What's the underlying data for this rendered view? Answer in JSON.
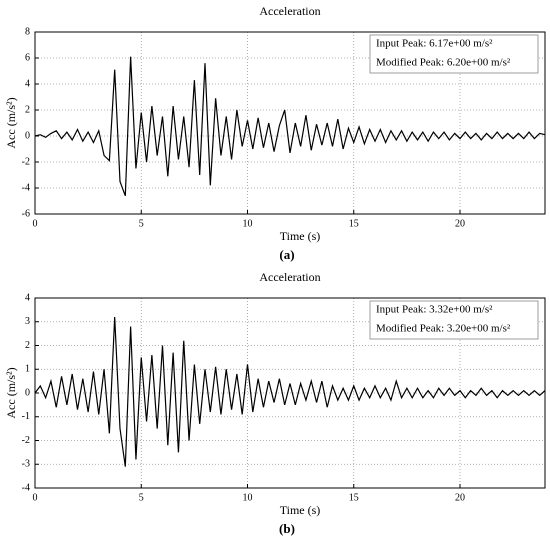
{
  "chart_data": [
    {
      "type": "line",
      "title": "Acceleration",
      "xlabel": "Time (s)",
      "ylabel": "Acc (m/s²)",
      "caption": "(a)",
      "annotations": [
        "Input Peak: 6.17e+00 m/s²",
        "Modified Peak: 6.20e+00 m/s²"
      ],
      "x": [
        0,
        0.25,
        0.5,
        0.75,
        1,
        1.25,
        1.5,
        1.75,
        2,
        2.25,
        2.5,
        2.75,
        3,
        3.25,
        3.5,
        3.75,
        4,
        4.25,
        4.5,
        4.75,
        5,
        5.25,
        5.5,
        5.75,
        6,
        6.25,
        6.5,
        6.75,
        7,
        7.25,
        7.5,
        7.75,
        8,
        8.25,
        8.5,
        8.75,
        9,
        9.25,
        9.5,
        9.75,
        10,
        10.25,
        10.5,
        10.75,
        11,
        11.25,
        11.5,
        11.75,
        12,
        12.25,
        12.5,
        12.75,
        13,
        13.25,
        13.5,
        13.75,
        14,
        14.25,
        14.5,
        14.75,
        15,
        15.25,
        15.5,
        15.75,
        16,
        16.25,
        16.5,
        16.75,
        17,
        17.25,
        17.5,
        17.75,
        18,
        18.25,
        18.5,
        18.75,
        19,
        19.25,
        19.5,
        19.75,
        20,
        20.25,
        20.5,
        20.75,
        21,
        21.25,
        21.5,
        21.75,
        22,
        22.25,
        22.5,
        22.75,
        23,
        23.25,
        23.5,
        23.75,
        24
      ],
      "values": [
        0,
        0.1,
        -0.1,
        0.2,
        0.4,
        -0.2,
        0.3,
        -0.3,
        0.5,
        -0.4,
        0.3,
        -0.5,
        0.4,
        -1.5,
        -1.9,
        5.1,
        -3.5,
        -4.6,
        6.1,
        -2.5,
        1.8,
        -2.0,
        2.3,
        -1.5,
        1.5,
        -3.1,
        2.3,
        -1.8,
        1.5,
        -2.4,
        4.3,
        -3.0,
        5.6,
        -3.8,
        2.9,
        -1.5,
        1.5,
        -1.8,
        2.0,
        -0.8,
        1.2,
        -1.0,
        1.4,
        -0.9,
        1.0,
        -1.2,
        0.8,
        2.0,
        -1.3,
        1.0,
        -0.8,
        1.6,
        -1.1,
        0.9,
        -0.7,
        1.0,
        -0.8,
        1.3,
        -1.0,
        0.6,
        -0.5,
        0.7,
        -0.6,
        0.5,
        -0.4,
        0.5,
        -0.5,
        0.4,
        -0.3,
        0.4,
        -0.4,
        0.3,
        -0.3,
        0.3,
        -0.4,
        0.3,
        -0.2,
        0.3,
        -0.3,
        0.2,
        -0.2,
        0.3,
        -0.2,
        0.2,
        -0.3,
        0.2,
        -0.2,
        0.3,
        -0.2,
        0.2,
        -0.2,
        0.2,
        -0.2,
        0.3,
        -0.2,
        0.2,
        0.1
      ],
      "color": "#000000",
      "xlim": [
        0,
        24
      ],
      "xticks": [
        0,
        5,
        10,
        15,
        20
      ],
      "ylim": [
        -6,
        8
      ],
      "yticks": [
        -6,
        -4,
        -2,
        0,
        2,
        4,
        6,
        8
      ],
      "grid": true
    },
    {
      "type": "line",
      "title": "Acceleration",
      "xlabel": "Time (s)",
      "ylabel": "Acc (m/s²)",
      "caption": "(b)",
      "annotations": [
        "Input Peak: 3.32e+00 m/s²",
        "Modified Peak: 3.20e+00 m/s²"
      ],
      "x": [
        0,
        0.25,
        0.5,
        0.75,
        1,
        1.25,
        1.5,
        1.75,
        2,
        2.25,
        2.5,
        2.75,
        3,
        3.25,
        3.5,
        3.75,
        4,
        4.25,
        4.5,
        4.75,
        5,
        5.25,
        5.5,
        5.75,
        6,
        6.25,
        6.5,
        6.75,
        7,
        7.25,
        7.5,
        7.75,
        8,
        8.25,
        8.5,
        8.75,
        9,
        9.25,
        9.5,
        9.75,
        10,
        10.25,
        10.5,
        10.75,
        11,
        11.25,
        11.5,
        11.75,
        12,
        12.25,
        12.5,
        12.75,
        13,
        13.25,
        13.5,
        13.75,
        14,
        14.25,
        14.5,
        14.75,
        15,
        15.25,
        15.5,
        15.75,
        16,
        16.25,
        16.5,
        16.75,
        17,
        17.25,
        17.5,
        17.75,
        18,
        18.25,
        18.5,
        18.75,
        19,
        19.25,
        19.5,
        19.75,
        20,
        20.25,
        20.5,
        20.75,
        21,
        21.25,
        21.5,
        21.75,
        22,
        22.25,
        22.5,
        22.75,
        23,
        23.25,
        23.5,
        23.75,
        24
      ],
      "values": [
        0,
        0.3,
        -0.2,
        0.5,
        -0.6,
        0.7,
        -0.5,
        0.8,
        -0.7,
        0.6,
        -0.8,
        0.9,
        -0.9,
        1.0,
        -1.7,
        3.2,
        -1.5,
        -3.1,
        2.8,
        -2.8,
        1.5,
        -1.2,
        1.6,
        -1.5,
        2.0,
        -2.2,
        1.7,
        -2.5,
        2.2,
        -2.0,
        1.2,
        -1.3,
        1.0,
        -0.8,
        1.1,
        -0.9,
        1.0,
        -0.7,
        0.8,
        -0.9,
        1.2,
        -0.8,
        0.6,
        -0.6,
        0.5,
        -0.4,
        0.6,
        -0.5,
        0.4,
        -0.5,
        0.4,
        -0.3,
        0.5,
        -0.4,
        0.5,
        -0.6,
        0.3,
        -0.3,
        0.2,
        -0.3,
        0.3,
        -0.3,
        0.2,
        -0.2,
        0.3,
        -0.2,
        0.2,
        -0.3,
        0.5,
        -0.2,
        0.2,
        -0.2,
        0.2,
        -0.2,
        0.1,
        -0.2,
        0.2,
        -0.1,
        0.2,
        -0.1,
        0.1,
        -0.2,
        0.1,
        -0.1,
        0.2,
        -0.1,
        0.1,
        -0.2,
        0.1,
        -0.1,
        0.1,
        -0.1,
        0.1,
        -0.1,
        0.1,
        -0.1,
        0.1
      ],
      "color": "#000000",
      "xlim": [
        0,
        24
      ],
      "xticks": [
        0,
        5,
        10,
        15,
        20
      ],
      "ylim": [
        -4,
        4
      ],
      "yticks": [
        -4,
        -3,
        -2,
        -1,
        0,
        1,
        2,
        3,
        4
      ],
      "grid": true
    }
  ]
}
